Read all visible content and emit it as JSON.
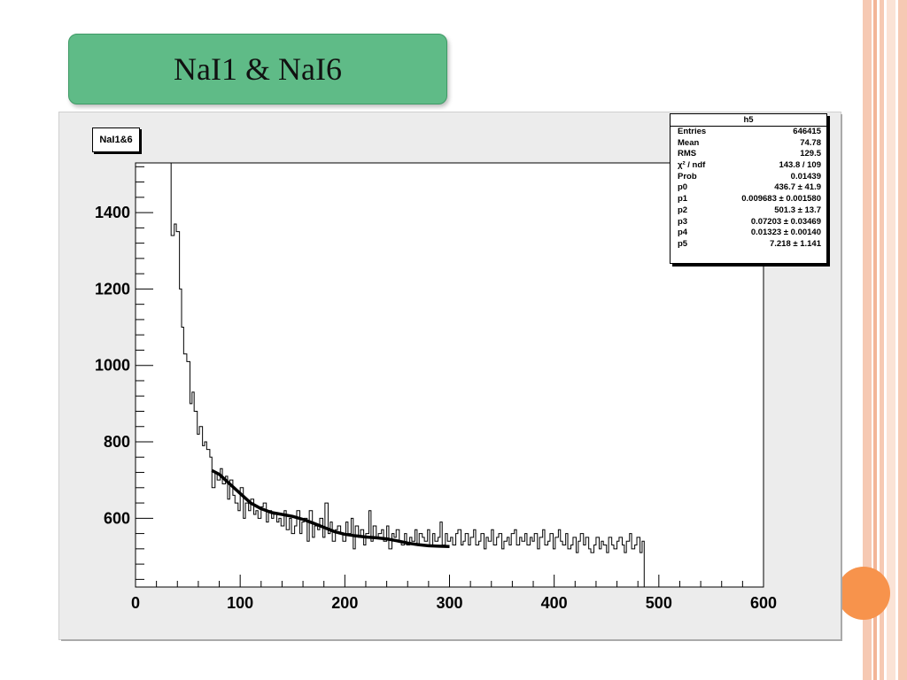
{
  "slide": {
    "title": "NaI1 & NaI6"
  },
  "histogram": {
    "title": "NaI1&6"
  },
  "stats": {
    "name": "h5",
    "rows": [
      {
        "label": "Entries",
        "value": "646415"
      },
      {
        "label": "Mean",
        "value": "74.78"
      },
      {
        "label": "RMS",
        "value": "129.5"
      },
      {
        "label": "χ² / ndf",
        "value": "143.8 / 109"
      },
      {
        "label": "Prob",
        "value": "0.01439"
      },
      {
        "label": "p0",
        "value": "436.7 ± 41.9"
      },
      {
        "label": "p1",
        "value": "0.009683 ± 0.001580"
      },
      {
        "label": "p2",
        "value": "501.3 ± 13.7"
      },
      {
        "label": "p3",
        "value": "0.07203 ± 0.03469"
      },
      {
        "label": "p4",
        "value": "0.01323 ± 0.00140"
      },
      {
        "label": "p5",
        "value": "7.218 ± 1.141"
      }
    ]
  },
  "colors": {
    "title_box": "#5fbb87",
    "frame": "#ececec",
    "plot_bg": "#ffffff",
    "accent_orange": "#f7934c",
    "stripe": "#f6c9b3"
  },
  "chart_data": {
    "type": "line",
    "title": "",
    "xlabel": "",
    "ylabel": "",
    "xlim": [
      0,
      600
    ],
    "ylim": [
      420,
      1530
    ],
    "x_ticks": [
      0,
      100,
      200,
      300,
      400,
      500,
      600
    ],
    "y_ticks": [
      600,
      800,
      1000,
      1200,
      1400
    ],
    "grid": false,
    "series": [
      {
        "style": "histogram",
        "x": [
          0,
          32,
          34,
          37,
          39,
          42,
          44,
          46,
          49,
          52,
          54,
          56,
          59,
          61,
          64,
          66,
          68,
          71,
          73,
          76,
          78,
          81,
          83,
          86,
          88,
          90,
          93,
          95,
          98,
          100,
          103,
          105,
          108,
          110,
          113,
          115,
          117,
          120,
          122,
          125,
          127,
          130,
          132,
          135,
          137,
          139,
          142,
          144,
          147,
          149,
          152,
          154,
          157,
          159,
          161,
          164,
          166,
          169,
          171,
          174,
          176,
          179,
          181,
          184,
          186,
          188,
          191,
          193,
          196,
          198,
          201,
          203,
          206,
          208,
          210,
          213,
          215,
          218,
          220,
          223,
          225,
          227,
          230,
          232,
          235,
          237,
          240,
          242,
          245,
          247,
          249,
          252,
          254,
          257,
          259,
          262,
          264,
          267,
          269,
          271,
          274,
          276,
          279,
          281,
          284,
          286,
          289,
          291,
          293,
          296,
          298,
          301,
          303,
          306,
          308,
          311,
          313,
          315,
          318,
          320,
          323,
          325,
          328,
          330,
          333,
          335,
          337,
          340,
          342,
          345,
          347,
          350,
          352,
          355,
          357,
          359,
          362,
          364,
          367,
          369,
          372,
          374,
          377,
          379,
          381,
          384,
          386,
          389,
          391,
          394,
          396,
          399,
          401,
          404,
          406,
          408,
          411,
          413,
          416,
          418,
          421,
          423,
          425,
          428,
          430,
          433,
          435,
          438,
          440,
          443,
          445,
          447,
          450,
          452,
          455,
          457,
          460,
          462,
          465,
          467,
          469,
          472,
          474,
          477,
          479,
          482,
          484,
          486
        ],
        "y": [
          1530,
          1530,
          1340,
          1370,
          1350,
          1200,
          1100,
          1030,
          1010,
          900,
          930,
          880,
          820,
          840,
          790,
          800,
          780,
          760,
          680,
          720,
          700,
          730,
          690,
          710,
          650,
          700,
          660,
          640,
          620,
          680,
          600,
          640,
          620,
          650,
          610,
          620,
          600,
          630,
          640,
          590,
          620,
          600,
          610,
          590,
          600,
          580,
          620,
          570,
          600,
          560,
          580,
          620,
          560,
          590,
          600,
          540,
          620,
          550,
          580,
          570,
          600,
          550,
          640,
          560,
          590,
          540,
          570,
          580,
          560,
          540,
          590,
          560,
          600,
          520,
          580,
          550,
          570,
          530,
          560,
          620,
          540,
          580,
          550,
          560,
          570,
          540,
          580,
          520,
          560,
          550,
          570,
          540,
          530,
          560,
          530,
          550,
          540,
          570,
          530,
          560,
          550,
          540,
          570,
          530,
          560,
          540,
          550,
          590,
          530,
          560,
          540,
          550,
          530,
          560,
          570,
          530,
          540,
          560,
          530,
          550,
          570,
          530,
          540,
          560,
          520,
          550,
          540,
          570,
          530,
          550,
          560,
          520,
          540,
          550,
          530,
          560,
          570,
          530,
          550,
          540,
          560,
          530,
          550,
          540,
          560,
          520,
          550,
          570,
          530,
          540,
          560,
          520,
          550,
          570,
          540,
          530,
          560,
          520,
          530,
          550,
          510,
          540,
          560,
          530,
          550,
          520,
          510,
          530,
          550,
          520,
          540,
          530,
          510,
          550,
          530,
          520,
          540,
          550,
          530,
          510,
          540,
          560,
          520,
          530,
          550,
          510,
          540,
          420
        ]
      },
      {
        "style": "fit",
        "x": [
          73,
          80,
          90,
          100,
          110,
          120,
          130,
          140,
          150,
          160,
          170,
          180,
          190,
          200,
          210,
          220,
          230,
          240,
          250,
          260,
          270,
          280,
          290,
          300
        ],
        "y": [
          725,
          715,
          690,
          665,
          640,
          625,
          615,
          610,
          605,
          597,
          587,
          576,
          565,
          558,
          554,
          551,
          549,
          546,
          541,
          535,
          531,
          528,
          527,
          526
        ]
      }
    ]
  }
}
